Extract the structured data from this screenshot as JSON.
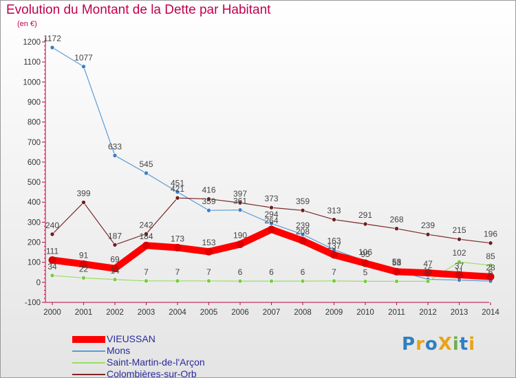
{
  "title": "Evolution du Montant de la Dette par Habitant",
  "unit_label": "(en €)",
  "logo": {
    "text": "ProXiti",
    "letters": [
      {
        "ch": "P",
        "color": "#2f7fc0"
      },
      {
        "ch": "r",
        "color": "#e8a317"
      },
      {
        "ch": "o",
        "color": "#2f7fc0"
      },
      {
        "ch": "X",
        "color": "#e8a317"
      },
      {
        "ch": "i",
        "color": "#6ab04c"
      },
      {
        "ch": "t",
        "color": "#2f7fc0"
      },
      {
        "ch": "i",
        "color": "#e8a317"
      }
    ]
  },
  "chart_data": {
    "type": "line",
    "title": "Evolution du Montant de la Dette par Habitant",
    "ylabel": "(en €)",
    "xlabel": "",
    "x": [
      "2000",
      "2001",
      "2002",
      "2003",
      "2004",
      "2005",
      "2006",
      "2007",
      "2008",
      "2009",
      "2010",
      "2011",
      "2012",
      "2013",
      "2014"
    ],
    "ylim": [
      -100,
      1200
    ],
    "yticks": [
      -100,
      0,
      100,
      200,
      300,
      400,
      500,
      600,
      700,
      800,
      900,
      1000,
      1100,
      1200
    ],
    "grid": false,
    "legend_position": "bottom-left",
    "series": [
      {
        "name": "Mons",
        "color": "#5b9bd5",
        "marker": "#3a7fc4",
        "values": [
          1172,
          1077,
          633,
          545,
          451,
          359,
          361,
          294,
          239,
          163,
          106,
          58,
          15,
          11,
          6
        ],
        "labels": [
          "1172",
          "1077",
          "633",
          "545",
          "451",
          "359",
          "361",
          "294",
          "239",
          "163",
          "106",
          "58",
          "15",
          "11",
          "6"
        ]
      },
      {
        "name": "Colombières-sur-Orb",
        "color": "#7a2525",
        "marker": "#6b1f1f",
        "values": [
          240,
          399,
          187,
          242,
          421,
          416,
          397,
          373,
          359,
          313,
          291,
          268,
          239,
          215,
          196
        ],
        "labels": [
          "240",
          "399",
          "187",
          "242",
          "421",
          "416",
          "397",
          "373",
          "359",
          "313",
          "291",
          "268",
          "239",
          "215",
          "196"
        ]
      },
      {
        "name": "Saint-Martin-de-l'Arçon",
        "color": "#99dd66",
        "marker": "#77cc44",
        "values": [
          34,
          22,
          14,
          7,
          7,
          7,
          6,
          6,
          6,
          7,
          5,
          5,
          5,
          102,
          85
        ],
        "labels": [
          "34",
          "22",
          "14",
          "7",
          "7",
          "7",
          "6",
          "6",
          "6",
          "7",
          "5",
          "",
          "",
          "102",
          "85"
        ]
      },
      {
        "name": "VIEUSSAN",
        "color": "#ff0000",
        "marker": "#dd0000",
        "bold": true,
        "values": [
          111,
          91,
          69,
          184,
          173,
          153,
          190,
          264,
          208,
          137,
          95,
          53,
          47,
          37,
          28
        ],
        "labels": [
          "111",
          "91",
          "69",
          "184",
          "173",
          "153",
          "190",
          "264",
          "208",
          "137",
          "95",
          "53",
          "47",
          "37",
          "28"
        ]
      }
    ]
  },
  "legend": [
    {
      "name": "VIEUSSAN",
      "color": "#ff0000",
      "width": 10
    },
    {
      "name": "Mons",
      "color": "#5b9bd5",
      "width": 2
    },
    {
      "name": "Saint-Martin-de-l'Arçon",
      "color": "#99dd66",
      "width": 2
    },
    {
      "name": "Colombières-sur-Orb",
      "color": "#7a2525",
      "width": 2
    }
  ]
}
